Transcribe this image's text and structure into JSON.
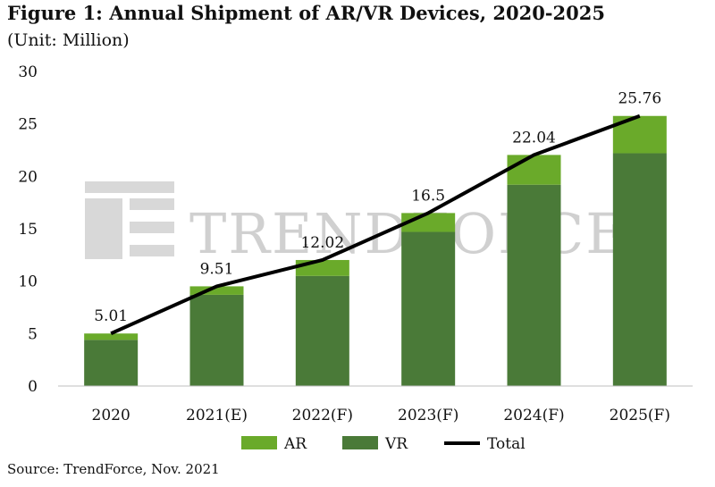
{
  "title": "Figure 1: Annual Shipment of AR/VR Devices, 2020-2025",
  "subtitle": "(Unit: Million)",
  "source": "Source: TrendForce, Nov. 2021",
  "watermark": "TRENDFORCE",
  "colors": {
    "ar": "#6aaa2a",
    "vr": "#4a7a38",
    "total": "#000000"
  },
  "chart_data": {
    "type": "bar",
    "stacked": true,
    "categories": [
      "2020",
      "2021(E)",
      "2022(F)",
      "2023(F)",
      "2024(F)",
      "2025(F)"
    ],
    "series": [
      {
        "name": "VR",
        "values": [
          4.4,
          8.7,
          10.5,
          14.7,
          19.2,
          22.2
        ],
        "color": "#4a7a38"
      },
      {
        "name": "AR",
        "values": [
          0.61,
          0.81,
          1.52,
          1.8,
          2.84,
          3.56
        ],
        "color": "#6aaa2a"
      }
    ],
    "total": {
      "name": "Total",
      "values": [
        5.01,
        9.51,
        12.02,
        16.5,
        22.04,
        25.76
      ],
      "labels": [
        "5.01",
        "9.51",
        "12.02",
        "16.5",
        "22.04",
        "25.76"
      ]
    },
    "ylim": [
      0,
      30
    ],
    "yticks": [
      "0",
      "5",
      "10",
      "15",
      "20",
      "25",
      "30"
    ],
    "legend": [
      "AR",
      "VR",
      "Total"
    ],
    "legend_position": "bottom",
    "grid": false
  }
}
